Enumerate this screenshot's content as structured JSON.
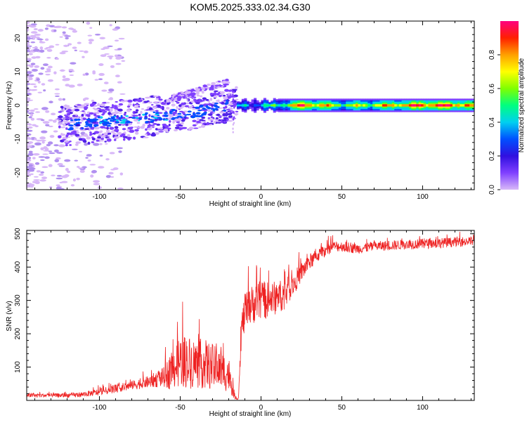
{
  "title": "KOM5.2025.333.02.34.G30",
  "chart_data": [
    {
      "type": "heatmap",
      "title": "KOM5.2025.333.02.34.G30",
      "xlabel": "Height of straight line (km)",
      "ylabel": "Frequency (Hz)",
      "xlim": [
        -145,
        132
      ],
      "ylim": [
        -25,
        25
      ],
      "xticks": [
        -100,
        -50,
        0,
        50,
        100
      ],
      "yticks": [
        -20,
        -10,
        0,
        10,
        20
      ],
      "colorbar": {
        "label": "Normalized spectral amplitude",
        "range": [
          0,
          1
        ],
        "ticks": [
          "0.0",
          "0.2",
          "0.4",
          "0.6",
          "0.8"
        ],
        "colormap": [
          "#d8b8f8",
          "#8040ff",
          "#3010e0",
          "#0050ff",
          "#00d0f0",
          "#00ff80",
          "#80ff00",
          "#ffff00",
          "#ffa000",
          "#ff2000",
          "#ff0080"
        ]
      },
      "ridge": {
        "x": [
          -130,
          -120,
          -110,
          -100,
          -90,
          -80,
          -70,
          -60,
          -50,
          -40,
          -30,
          -20,
          -15,
          -10,
          0,
          10,
          25,
          50,
          75,
          100,
          125,
          132
        ],
        "freq": [
          -6,
          -6,
          -5.5,
          -5,
          -4.5,
          -4,
          -3.5,
          -3,
          -2.5,
          -2,
          -1,
          0,
          0.5,
          0,
          0,
          0,
          0,
          0,
          0,
          0,
          0,
          0
        ],
        "amplitude": [
          0.2,
          0.22,
          0.25,
          0.28,
          0.3,
          0.3,
          0.28,
          0.26,
          0.25,
          0.25,
          0.24,
          0.25,
          0.3,
          0.35,
          0.4,
          0.5,
          0.9,
          0.6,
          0.7,
          0.9,
          0.85,
          0.7
        ]
      }
    },
    {
      "type": "line",
      "xlabel": "Height of straight line (km)",
      "ylabel": "SNR (v/v)",
      "xlim": [
        -145,
        132
      ],
      "ylim": [
        0,
        510
      ],
      "xticks": [
        -100,
        -50,
        0,
        50,
        100
      ],
      "yticks": [
        100,
        200,
        300,
        400,
        500
      ],
      "color": "#ee2222",
      "series": [
        {
          "name": "SNR",
          "x": [
            -145,
            -130,
            -120,
            -110,
            -100,
            -90,
            -80,
            -70,
            -60,
            -55,
            -50,
            -45,
            -40,
            -35,
            -30,
            -25,
            -20,
            -16,
            -14,
            -12,
            -10,
            -5,
            0,
            5,
            10,
            15,
            20,
            25,
            30,
            35,
            40,
            45,
            50,
            60,
            70,
            80,
            90,
            100,
            110,
            120,
            132
          ],
          "y": [
            15,
            15,
            15,
            18,
            25,
            35,
            45,
            55,
            70,
            90,
            120,
            115,
            110,
            110,
            100,
            90,
            80,
            8,
            5,
            220,
            260,
            290,
            300,
            300,
            310,
            320,
            350,
            385,
            415,
            435,
            450,
            462,
            462,
            455,
            462,
            465,
            468,
            470,
            472,
            475,
            478
          ],
          "noise": [
            6,
            6,
            7,
            8,
            10,
            12,
            14,
            18,
            30,
            60,
            80,
            80,
            75,
            75,
            70,
            60,
            55,
            5,
            3,
            45,
            60,
            60,
            60,
            55,
            50,
            45,
            35,
            30,
            25,
            20,
            18,
            16,
            16,
            15,
            15,
            15,
            15,
            15,
            15,
            15,
            15
          ]
        }
      ]
    }
  ]
}
